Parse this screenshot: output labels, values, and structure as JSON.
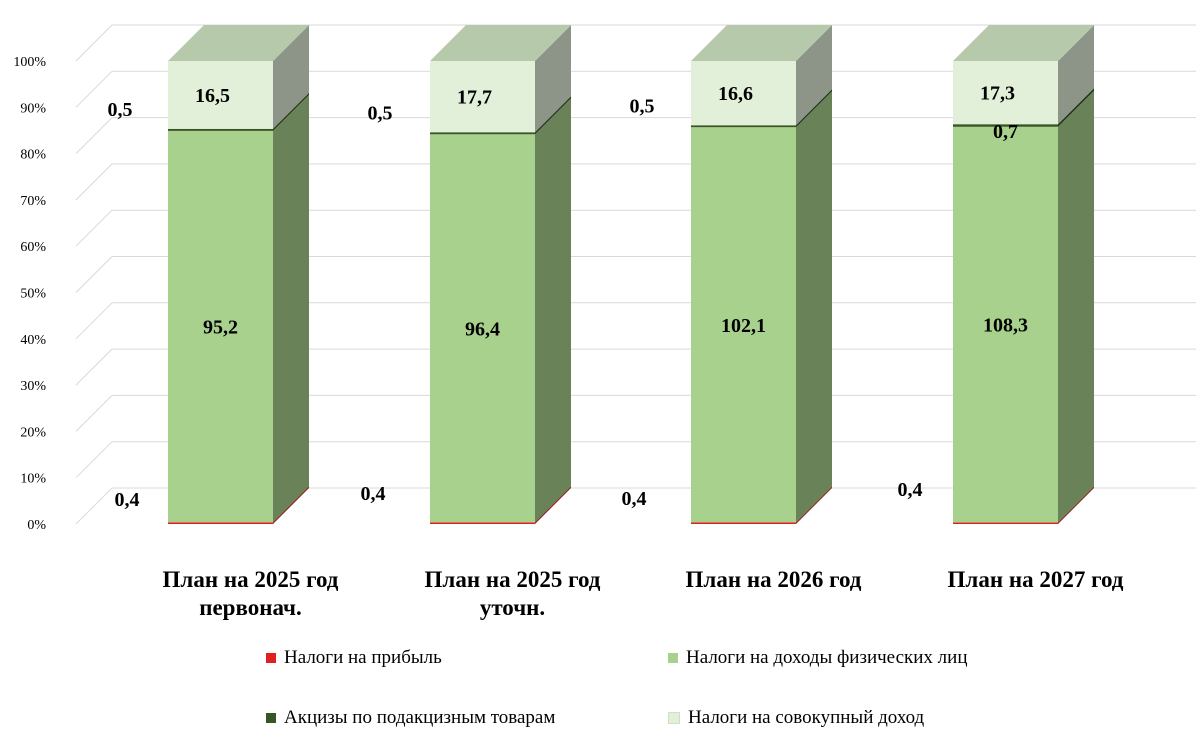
{
  "chart_data": {
    "type": "bar",
    "stacked": "percent",
    "three_d": true,
    "categories": [
      [
        "План на 2025 год",
        "первонач."
      ],
      [
        "План на 2025 год",
        "уточн."
      ],
      [
        "План на 2026 год"
      ],
      [
        "План на 2027 год"
      ]
    ],
    "series": [
      {
        "name": "Налоги на прибыль",
        "color": "#e02020",
        "values": [
          0.4,
          0.4,
          0.4,
          0.4
        ]
      },
      {
        "name": "Налоги на доходы физических лиц",
        "color": "#a9d18e",
        "values": [
          95.2,
          96.4,
          102.1,
          108.3
        ]
      },
      {
        "name": "Акцизы по подакцизным товарам",
        "color": "#375623",
        "values": [
          0.5,
          0.5,
          0.5,
          0.7
        ]
      },
      {
        "name": "Налоги на совокупный доход",
        "color": "#e2f0d9",
        "values": [
          16.5,
          17.7,
          16.6,
          17.3
        ]
      }
    ],
    "ylim": [
      0,
      100
    ],
    "yticks": [
      "0%",
      "10%",
      "20%",
      "30%",
      "40%",
      "50%",
      "60%",
      "70%",
      "80%",
      "90%",
      "100%"
    ],
    "grid": true,
    "legend": "bottom"
  }
}
